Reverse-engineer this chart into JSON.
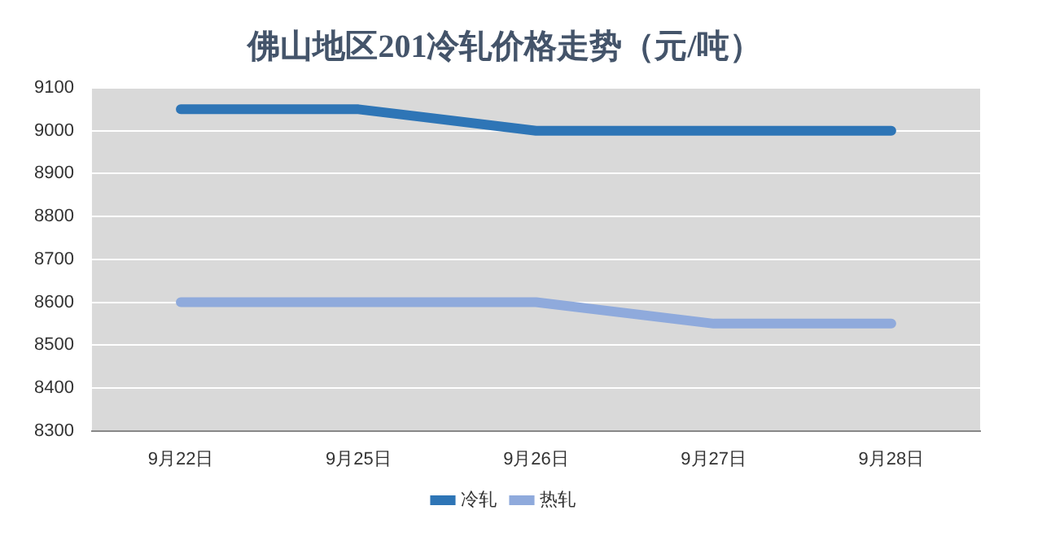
{
  "chart_data": {
    "type": "line",
    "title": "佛山地区201冷轧价格走势（元/吨）",
    "categories": [
      "9月22日",
      "9月25日",
      "9月26日",
      "9月27日",
      "9月28日"
    ],
    "series": [
      {
        "name": "冷轧",
        "color": "#2e75b6",
        "values": [
          9050,
          9050,
          9000,
          9000,
          9000
        ]
      },
      {
        "name": "热轧",
        "color": "#8faadc",
        "values": [
          8600,
          8600,
          8600,
          8550,
          8550
        ]
      }
    ],
    "ylim": [
      8300,
      9100
    ],
    "yticks": [
      8300,
      8400,
      8500,
      8600,
      8700,
      8800,
      8900,
      9000,
      9100
    ],
    "grid": "y",
    "legend": "bottom",
    "marker": "none",
    "line_style": "solid"
  }
}
